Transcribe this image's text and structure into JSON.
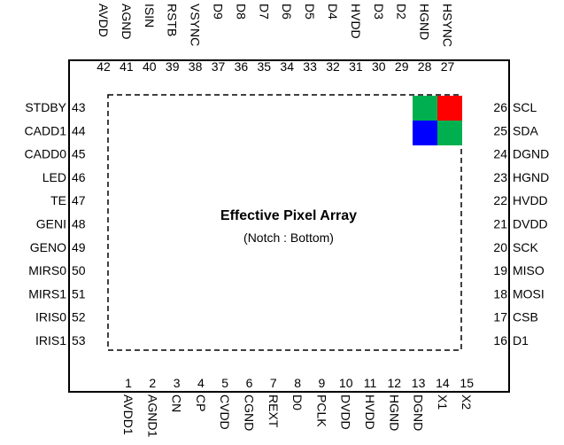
{
  "title": "Effective Pixel Array",
  "subtitle": "(Notch : Bottom)",
  "colors": {
    "red": "#ff0000",
    "green": "#00b050",
    "blue": "#0000ff",
    "outline": "#000000"
  },
  "pixel_pattern": [
    [
      "green",
      "red"
    ],
    [
      "blue",
      "green"
    ]
  ],
  "pins": {
    "top": [
      {
        "num": "42",
        "name": "AVDD"
      },
      {
        "num": "41",
        "name": "AGND"
      },
      {
        "num": "40",
        "name": "ISIN"
      },
      {
        "num": "39",
        "name": "RSTB"
      },
      {
        "num": "38",
        "name": "VSYNC"
      },
      {
        "num": "37",
        "name": "D9"
      },
      {
        "num": "36",
        "name": "D8"
      },
      {
        "num": "35",
        "name": "D7"
      },
      {
        "num": "34",
        "name": "D6"
      },
      {
        "num": "33",
        "name": "D5"
      },
      {
        "num": "32",
        "name": "D4"
      },
      {
        "num": "31",
        "name": "HVDD"
      },
      {
        "num": "30",
        "name": "D3"
      },
      {
        "num": "29",
        "name": "D2"
      },
      {
        "num": "28",
        "name": "HGND"
      },
      {
        "num": "27",
        "name": "HSYNC"
      }
    ],
    "bottom": [
      {
        "num": "1",
        "name": "AVDD1"
      },
      {
        "num": "2",
        "name": "AGND1"
      },
      {
        "num": "3",
        "name": "CN"
      },
      {
        "num": "4",
        "name": "CP"
      },
      {
        "num": "5",
        "name": "CVDD"
      },
      {
        "num": "6",
        "name": "CGND"
      },
      {
        "num": "7",
        "name": "REXT"
      },
      {
        "num": "8",
        "name": "D0"
      },
      {
        "num": "9",
        "name": "PCLK"
      },
      {
        "num": "10",
        "name": "DVDD"
      },
      {
        "num": "11",
        "name": "HVDD"
      },
      {
        "num": "12",
        "name": "HGND"
      },
      {
        "num": "13",
        "name": "DGND"
      },
      {
        "num": "14",
        "name": "X1"
      },
      {
        "num": "15",
        "name": "X2"
      }
    ],
    "left": [
      {
        "num": "43",
        "name": "STDBY"
      },
      {
        "num": "44",
        "name": "CADD1"
      },
      {
        "num": "45",
        "name": "CADD0"
      },
      {
        "num": "46",
        "name": "LED"
      },
      {
        "num": "47",
        "name": "TE"
      },
      {
        "num": "48",
        "name": "GENI"
      },
      {
        "num": "49",
        "name": "GENO"
      },
      {
        "num": "50",
        "name": "MIRS0"
      },
      {
        "num": "51",
        "name": "MIRS1"
      },
      {
        "num": "52",
        "name": "IRIS0"
      },
      {
        "num": "53",
        "name": "IRIS1"
      }
    ],
    "right": [
      {
        "num": "26",
        "name": "SCL"
      },
      {
        "num": "25",
        "name": "SDA"
      },
      {
        "num": "24",
        "name": "DGND"
      },
      {
        "num": "23",
        "name": "HGND"
      },
      {
        "num": "22",
        "name": "HVDD"
      },
      {
        "num": "21",
        "name": "DVDD"
      },
      {
        "num": "20",
        "name": "SCK"
      },
      {
        "num": "19",
        "name": "MISO"
      },
      {
        "num": "18",
        "name": "MOSI"
      },
      {
        "num": "17",
        "name": "CSB"
      },
      {
        "num": "16",
        "name": "D1"
      }
    ]
  }
}
